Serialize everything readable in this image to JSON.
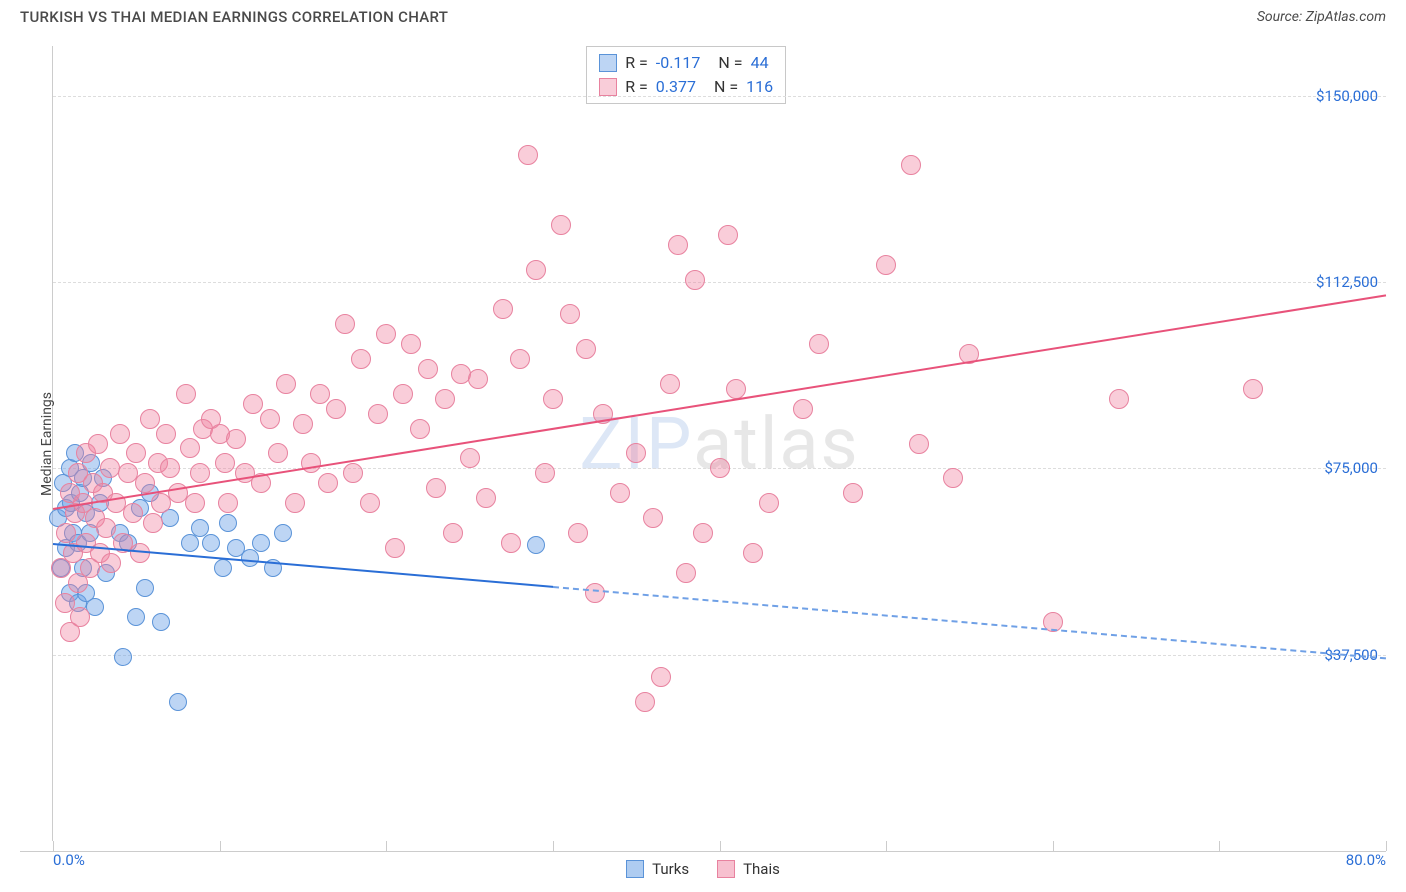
{
  "title": "TURKISH VS THAI MEDIAN EARNINGS CORRELATION CHART",
  "source": "Source: ZipAtlas.com",
  "watermark": {
    "part1": "ZIP",
    "part2": "atlas"
  },
  "y_axis_title": "Median Earnings",
  "x_axis": {
    "min_pct": 0,
    "max_pct": 80,
    "min_label": "0.0%",
    "max_label": "80.0%",
    "tick_positions_pct": [
      0,
      10,
      20,
      30,
      40,
      50,
      60,
      70,
      80
    ]
  },
  "y_axis": {
    "min": 0,
    "max": 160000,
    "gridlines": [
      37500,
      75000,
      112500,
      150000
    ],
    "labels": [
      "$37,500",
      "$75,000",
      "$112,500",
      "$150,000"
    ]
  },
  "series": [
    {
      "name": "Turks",
      "color_fill": "rgba(108,162,230,0.45)",
      "color_stroke": "#5a93d8",
      "marker_radius": 9,
      "R": "-0.117",
      "N": "44",
      "trend": {
        "x1_pct": 0,
        "y1": 60000,
        "x2_pct": 80,
        "y2": 37000,
        "solid_until_pct": 30
      },
      "points": [
        [
          0.3,
          65000
        ],
        [
          0.5,
          55000
        ],
        [
          0.6,
          72000
        ],
        [
          0.8,
          67000
        ],
        [
          0.8,
          59000
        ],
        [
          1.0,
          75000
        ],
        [
          1.0,
          50000
        ],
        [
          1.1,
          68000
        ],
        [
          1.2,
          62000
        ],
        [
          1.3,
          78000
        ],
        [
          1.5,
          60000
        ],
        [
          1.5,
          48000
        ],
        [
          1.6,
          70000
        ],
        [
          1.8,
          55000
        ],
        [
          1.8,
          73000
        ],
        [
          2.0,
          66000
        ],
        [
          2.0,
          50000
        ],
        [
          2.2,
          62000
        ],
        [
          2.3,
          76000
        ],
        [
          2.5,
          47000
        ],
        [
          2.8,
          68000
        ],
        [
          3.0,
          73000
        ],
        [
          3.2,
          54000
        ],
        [
          4.0,
          62000
        ],
        [
          4.2,
          37000
        ],
        [
          4.5,
          60000
        ],
        [
          5.0,
          45000
        ],
        [
          5.2,
          67000
        ],
        [
          5.5,
          51000
        ],
        [
          5.8,
          70000
        ],
        [
          6.5,
          44000
        ],
        [
          7.0,
          65000
        ],
        [
          7.5,
          28000
        ],
        [
          8.2,
          60000
        ],
        [
          8.8,
          63000
        ],
        [
          9.5,
          60000
        ],
        [
          10.2,
          55000
        ],
        [
          10.5,
          64000
        ],
        [
          11.0,
          59000
        ],
        [
          11.8,
          57000
        ],
        [
          12.5,
          60000
        ],
        [
          13.2,
          55000
        ],
        [
          13.8,
          62000
        ],
        [
          29.0,
          59500
        ]
      ]
    },
    {
      "name": "Thais",
      "color_fill": "rgba(240,130,160,0.40)",
      "color_stroke": "#e8829f",
      "marker_radius": 10,
      "R": "0.377",
      "N": "116",
      "trend": {
        "x1_pct": 0,
        "y1": 67000,
        "x2_pct": 80,
        "y2": 110000,
        "solid_until_pct": 80
      },
      "points": [
        [
          0.5,
          55000
        ],
        [
          0.7,
          48000
        ],
        [
          0.8,
          62000
        ],
        [
          1.0,
          42000
        ],
        [
          1.0,
          70000
        ],
        [
          1.2,
          58000
        ],
        [
          1.3,
          66000
        ],
        [
          1.5,
          52000
        ],
        [
          1.5,
          74000
        ],
        [
          1.6,
          45000
        ],
        [
          1.8,
          68000
        ],
        [
          2.0,
          60000
        ],
        [
          2.0,
          78000
        ],
        [
          2.2,
          55000
        ],
        [
          2.4,
          72000
        ],
        [
          2.5,
          65000
        ],
        [
          2.7,
          80000
        ],
        [
          2.8,
          58000
        ],
        [
          3.0,
          70000
        ],
        [
          3.2,
          63000
        ],
        [
          3.4,
          75000
        ],
        [
          3.5,
          56000
        ],
        [
          3.8,
          68000
        ],
        [
          4.0,
          82000
        ],
        [
          4.2,
          60000
        ],
        [
          4.5,
          74000
        ],
        [
          4.8,
          66000
        ],
        [
          5.0,
          78000
        ],
        [
          5.2,
          58000
        ],
        [
          5.5,
          72000
        ],
        [
          5.8,
          85000
        ],
        [
          6.0,
          64000
        ],
        [
          6.3,
          76000
        ],
        [
          6.5,
          68000
        ],
        [
          6.8,
          82000
        ],
        [
          7.0,
          75000
        ],
        [
          7.5,
          70000
        ],
        [
          8.0,
          90000
        ],
        [
          8.2,
          79000
        ],
        [
          8.5,
          68000
        ],
        [
          8.8,
          74000
        ],
        [
          9.0,
          83000
        ],
        [
          9.5,
          85000
        ],
        [
          10.0,
          82000
        ],
        [
          10.3,
          76000
        ],
        [
          10.5,
          68000
        ],
        [
          11.0,
          81000
        ],
        [
          11.5,
          74000
        ],
        [
          12.0,
          88000
        ],
        [
          12.5,
          72000
        ],
        [
          13.0,
          85000
        ],
        [
          13.5,
          78000
        ],
        [
          14.0,
          92000
        ],
        [
          14.5,
          68000
        ],
        [
          15.0,
          84000
        ],
        [
          15.5,
          76000
        ],
        [
          16.0,
          90000
        ],
        [
          16.5,
          72000
        ],
        [
          17.0,
          87000
        ],
        [
          17.5,
          104000
        ],
        [
          18.0,
          74000
        ],
        [
          18.5,
          97000
        ],
        [
          19.0,
          68000
        ],
        [
          19.5,
          86000
        ],
        [
          20.0,
          102000
        ],
        [
          20.5,
          59000
        ],
        [
          21.0,
          90000
        ],
        [
          21.5,
          100000
        ],
        [
          22.0,
          83000
        ],
        [
          22.5,
          95000
        ],
        [
          23.0,
          71000
        ],
        [
          23.5,
          89000
        ],
        [
          24.0,
          62000
        ],
        [
          24.5,
          94000
        ],
        [
          25.0,
          77000
        ],
        [
          25.5,
          93000
        ],
        [
          26.0,
          69000
        ],
        [
          27.0,
          107000
        ],
        [
          27.5,
          60000
        ],
        [
          28.0,
          97000
        ],
        [
          28.5,
          138000
        ],
        [
          29.0,
          115000
        ],
        [
          29.5,
          74000
        ],
        [
          30.0,
          89000
        ],
        [
          30.5,
          124000
        ],
        [
          31.0,
          106000
        ],
        [
          31.5,
          62000
        ],
        [
          32.0,
          99000
        ],
        [
          32.5,
          50000
        ],
        [
          33.0,
          86000
        ],
        [
          34.0,
          70000
        ],
        [
          35.0,
          78000
        ],
        [
          35.5,
          28000
        ],
        [
          36.0,
          65000
        ],
        [
          36.5,
          33000
        ],
        [
          37.0,
          92000
        ],
        [
          37.5,
          120000
        ],
        [
          38.0,
          54000
        ],
        [
          38.5,
          113000
        ],
        [
          39.0,
          62000
        ],
        [
          40.0,
          75000
        ],
        [
          40.5,
          122000
        ],
        [
          41.0,
          91000
        ],
        [
          42.0,
          58000
        ],
        [
          43.0,
          68000
        ],
        [
          45.0,
          87000
        ],
        [
          46.0,
          100000
        ],
        [
          48.0,
          70000
        ],
        [
          50.0,
          116000
        ],
        [
          51.5,
          136000
        ],
        [
          52.0,
          80000
        ],
        [
          54.0,
          73000
        ],
        [
          55.0,
          98000
        ],
        [
          60.0,
          44000
        ],
        [
          64.0,
          89000
        ],
        [
          72.0,
          91000
        ]
      ]
    }
  ],
  "legend": [
    {
      "label": "Turks",
      "fill": "rgba(108,162,230,0.55)",
      "stroke": "#5a93d8"
    },
    {
      "label": "Thais",
      "fill": "rgba(240,130,160,0.50)",
      "stroke": "#e8829f"
    }
  ]
}
